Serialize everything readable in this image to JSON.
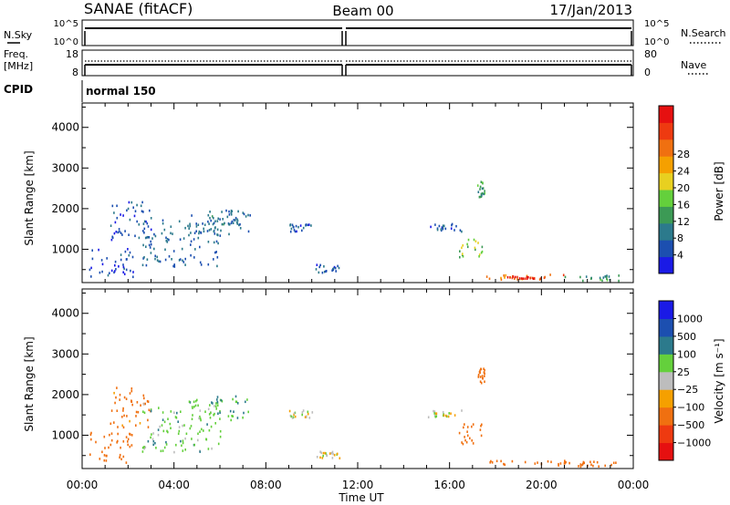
{
  "header": {
    "station": "SANAE (fitACF)",
    "beam": "Beam 00",
    "date": "17/Jan/2013"
  },
  "status_panels": {
    "nsky_label": "N.Sky",
    "nsearch_label": "N.Search",
    "freq_label": "Freq.",
    "freq_unit": "[MHz]",
    "nave_label": "Nave",
    "cpid_label": "CPID",
    "cpid_value": "normal 150",
    "noise_ticks": [
      "10^5",
      "10^0"
    ],
    "freq_ticks": [
      "18",
      "8"
    ],
    "nave_ticks": [
      "80",
      "0"
    ]
  },
  "chart_data": [
    {
      "type": "heatmap",
      "title": "",
      "xlabel": "",
      "ylabel": "Slant Range [km]",
      "xlim": [
        0,
        24
      ],
      "ylim": [
        180,
        4600
      ],
      "xticks": [
        "00:00",
        "04:00",
        "08:00",
        "12:00",
        "16:00",
        "20:00",
        "00:00"
      ],
      "yticks": [
        1000,
        2000,
        3000,
        4000
      ],
      "colorbar": {
        "label": "Power [dB]",
        "ticks": [
          "4",
          "8",
          "12",
          "16",
          "20",
          "24",
          "28"
        ],
        "colors": [
          "#1a1ae6",
          "#1c4fb0",
          "#2c7a8c",
          "#3c9a55",
          "#64d03c",
          "#e8d020",
          "#f5a000",
          "#f07010",
          "#ee3a10",
          "#e61010"
        ]
      },
      "regions": [
        {
          "t": [
            0.3,
            2.2
          ],
          "r": [
            300,
            1100
          ],
          "value": 4
        },
        {
          "t": [
            1.2,
            3.0
          ],
          "r": [
            1200,
            2200
          ],
          "value": 5
        },
        {
          "t": [
            2.6,
            6.0
          ],
          "r": [
            600,
            1800
          ],
          "value": 6
        },
        {
          "t": [
            4.6,
            7.4
          ],
          "r": [
            1400,
            2000
          ],
          "value": 7
        },
        {
          "t": [
            6.0,
            7.2
          ],
          "r": [
            1600,
            2000
          ],
          "value": 6
        },
        {
          "t": [
            9.0,
            10.0
          ],
          "r": [
            1450,
            1650
          ],
          "value": 5
        },
        {
          "t": [
            10.1,
            11.2
          ],
          "r": [
            450,
            650
          ],
          "value": 5
        },
        {
          "t": [
            15.0,
            16.5
          ],
          "r": [
            1450,
            1650
          ],
          "value": 5
        },
        {
          "t": [
            16.4,
            17.4
          ],
          "r": [
            800,
            1300
          ],
          "value": 14
        },
        {
          "t": [
            17.2,
            17.5
          ],
          "r": [
            2300,
            2700
          ],
          "value": 10
        },
        {
          "t": [
            17.5,
            21.0
          ],
          "r": [
            280,
            400
          ],
          "value": 22
        },
        {
          "t": [
            18.5,
            20.5
          ],
          "r": [
            280,
            360
          ],
          "value": 26
        },
        {
          "t": [
            21.0,
            23.4
          ],
          "r": [
            250,
            380
          ],
          "value": 10
        }
      ]
    },
    {
      "type": "heatmap",
      "title": "",
      "xlabel": "Time UT",
      "ylabel": "Slant Range [km]",
      "xlim": [
        0,
        24
      ],
      "ylim": [
        180,
        4600
      ],
      "xticks": [
        "00:00",
        "04:00",
        "08:00",
        "12:00",
        "16:00",
        "20:00",
        "00:00"
      ],
      "yticks": [
        1000,
        2000,
        3000,
        4000
      ],
      "colorbar": {
        "label": "Velocity [m s⁻¹]",
        "ticks": [
          "1000",
          "500",
          "100",
          "25",
          "−25",
          "−100",
          "−500",
          "−1000"
        ],
        "colors": [
          "#1a1ae6",
          "#1c4fb0",
          "#2c7a8c",
          "#64d03c",
          "#bdbdbd",
          "#f5a000",
          "#f07010",
          "#ee3a10",
          "#e61010"
        ]
      },
      "regions": [
        {
          "t": [
            0.3,
            2.2
          ],
          "r": [
            300,
            1100
          ],
          "value": -200
        },
        {
          "t": [
            1.2,
            3.0
          ],
          "r": [
            1200,
            2200
          ],
          "value": -150
        },
        {
          "t": [
            2.6,
            6.0
          ],
          "r": [
            600,
            1800
          ],
          "value": 60
        },
        {
          "t": [
            4.6,
            7.4
          ],
          "r": [
            1400,
            2000
          ],
          "value": 80
        },
        {
          "t": [
            9.0,
            10.0
          ],
          "r": [
            1450,
            1650
          ],
          "value": 0
        },
        {
          "t": [
            10.1,
            11.2
          ],
          "r": [
            450,
            650
          ],
          "value": 0
        },
        {
          "t": [
            15.0,
            16.5
          ],
          "r": [
            1450,
            1650
          ],
          "value": 0
        },
        {
          "t": [
            16.4,
            17.4
          ],
          "r": [
            800,
            1300
          ],
          "value": -300
        },
        {
          "t": [
            17.2,
            17.5
          ],
          "r": [
            2300,
            2700
          ],
          "value": -200
        },
        {
          "t": [
            17.5,
            21.0
          ],
          "r": [
            280,
            400
          ],
          "value": -300
        },
        {
          "t": [
            21.0,
            23.4
          ],
          "r": [
            250,
            380
          ],
          "value": -200
        }
      ]
    }
  ]
}
